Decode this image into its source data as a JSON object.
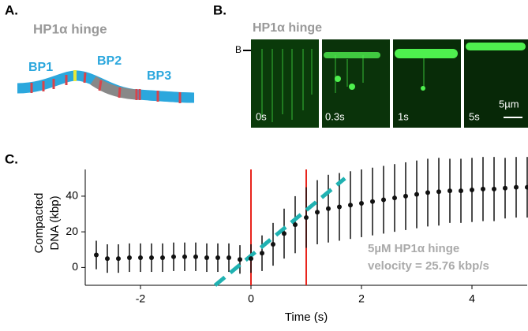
{
  "panels": {
    "a": {
      "letter": "A.",
      "title": "HP1α hinge",
      "labels": [
        "BP1",
        "BP2",
        "BP3"
      ]
    },
    "b": {
      "letter": "B.",
      "title": "HP1α hinge",
      "side_label": "B",
      "frames": [
        "0s",
        "0.3s",
        "1s",
        "5s"
      ],
      "scale_bar": "5µm"
    },
    "c": {
      "letter": "C."
    }
  },
  "chart_data": {
    "type": "errorbar",
    "xlabel": "Time (s)",
    "ylabel": [
      "Compacted",
      "DNA (kbp)"
    ],
    "annotations": [
      "5µM HP1α hinge",
      "velocity = 25.76 kbp/s"
    ],
    "x": [
      -2.8,
      -2.6,
      -2.4,
      -2.2,
      -2.0,
      -1.8,
      -1.6,
      -1.4,
      -1.2,
      -1.0,
      -0.8,
      -0.6,
      -0.4,
      -0.2,
      0,
      0.2,
      0.4,
      0.6,
      0.8,
      1.0,
      1.2,
      1.4,
      1.6,
      1.8,
      2.0,
      2.2,
      2.4,
      2.6,
      2.8,
      3.0,
      3.2,
      3.4,
      3.6,
      3.8,
      4.0,
      4.2,
      4.4,
      4.6,
      4.8,
      5.0
    ],
    "values": [
      7,
      5,
      5,
      5.5,
      5.5,
      5.5,
      5.5,
      6,
      6,
      6,
      5.5,
      5.5,
      5.5,
      4.5,
      5,
      8,
      13,
      19,
      24,
      28,
      31,
      33,
      34,
      35,
      36,
      37,
      38,
      39,
      40,
      41,
      42,
      42.5,
      43,
      43,
      43.5,
      44,
      44,
      44.5,
      45,
      45
    ],
    "errors": [
      8,
      8,
      8,
      8,
      8,
      8,
      8,
      8,
      8,
      8,
      8,
      8,
      8,
      8,
      8,
      10,
      12,
      14,
      16,
      17,
      18,
      19,
      19,
      19,
      19,
      19,
      19,
      19,
      19,
      19,
      19,
      19,
      18,
      18,
      18,
      18,
      18,
      17,
      17,
      17
    ],
    "color": "#111111",
    "fit_line": {
      "x": [
        -0.65,
        1.7
      ],
      "y": [
        -10,
        50
      ],
      "color": "#20b2b2"
    },
    "vlines": {
      "x": [
        0,
        1
      ],
      "color": "#e8241c"
    },
    "xlim": [
      -3,
      5
    ],
    "ylim": [
      -10,
      55
    ],
    "xticks": [
      -2,
      0,
      2,
      4
    ],
    "yticks": [
      0,
      20,
      40
    ]
  }
}
